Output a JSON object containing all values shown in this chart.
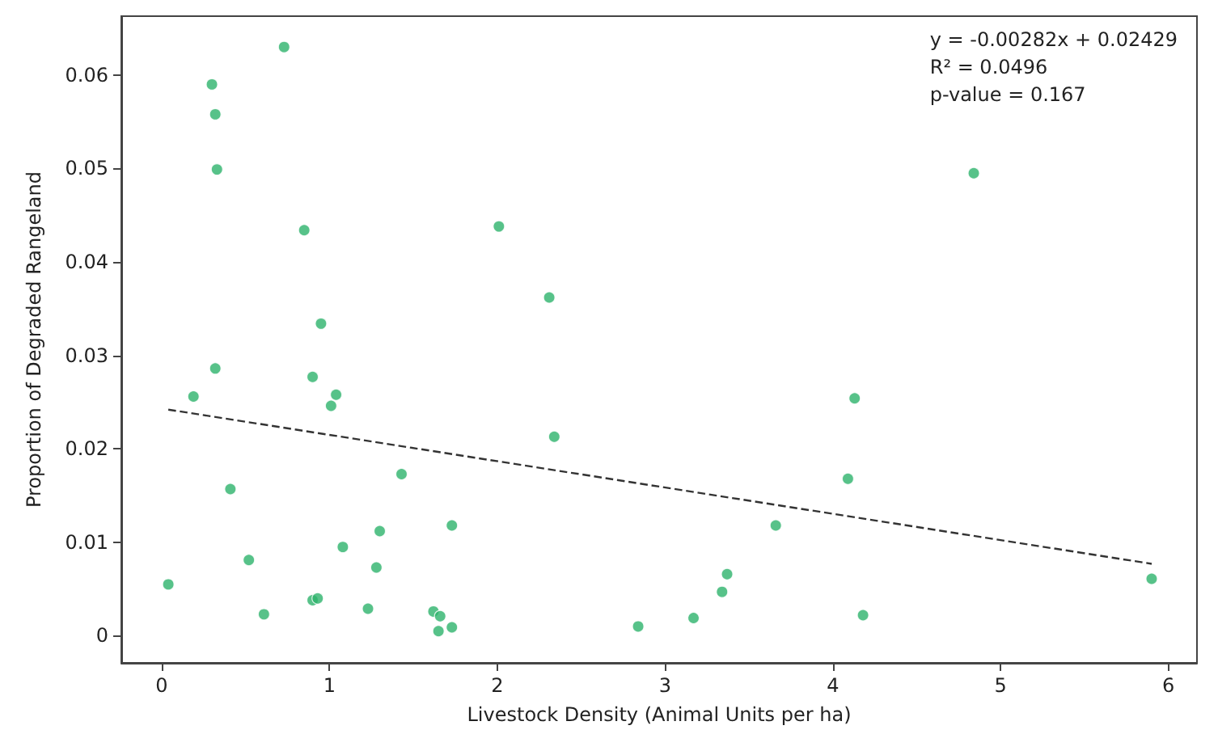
{
  "chart_data": {
    "type": "scatter",
    "xlabel": "Livestock Density (Animal Units per ha)",
    "ylabel": "Proportion of Degraded Rangeland",
    "xlim": [
      -0.24,
      6.17
    ],
    "xticks": [
      0,
      1,
      2,
      3,
      4,
      5,
      6
    ],
    "ylim": [
      -0.0029,
      0.0663
    ],
    "yticks": [
      0,
      0.01,
      0.02,
      0.03,
      0.04,
      0.05,
      0.06
    ],
    "grid": false,
    "marker": "circle",
    "annotations": [
      "y = -0.00282x + 0.02429",
      "R² = 0.0496",
      "p-value = 0.167"
    ],
    "series": [
      {
        "color": "#2db36b",
        "x": [
          0.04,
          0.19,
          0.3,
          0.32,
          0.33,
          0.32,
          0.41,
          0.52,
          0.61,
          0.73,
          0.85,
          0.95,
          0.9,
          1.01,
          1.04,
          0.9,
          0.93,
          1.08,
          1.23,
          1.28,
          1.3,
          1.43,
          1.62,
          1.66,
          1.65,
          1.73,
          1.73,
          2.01,
          2.31,
          2.34,
          2.84,
          3.17,
          3.34,
          3.37,
          3.66,
          4.09,
          4.13,
          4.18,
          4.84,
          5.9
        ],
        "values": [
          0.0055,
          0.0256,
          0.059,
          0.0558,
          0.0499,
          0.0286,
          0.0157,
          0.0081,
          0.0023,
          0.063,
          0.0434,
          0.0334,
          0.0277,
          0.0246,
          0.0258,
          0.0038,
          0.004,
          0.0095,
          0.0029,
          0.0073,
          0.0112,
          0.0173,
          0.0026,
          0.0021,
          0.0005,
          0.0009,
          0.0118,
          0.0438,
          0.0362,
          0.0213,
          0.001,
          0.0019,
          0.0047,
          0.0066,
          0.0118,
          0.0168,
          0.0254,
          0.0022,
          0.0495,
          0.0061
        ]
      },
      {
        "type": "line",
        "color": "#333333",
        "line_style": "dashed",
        "marker": "none",
        "x": [
          0.04,
          5.9
        ],
        "values": [
          0.0242,
          0.0077
        ]
      }
    ]
  }
}
